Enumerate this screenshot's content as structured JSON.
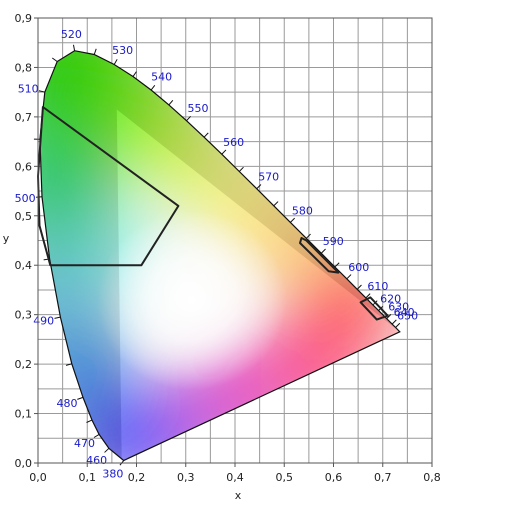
{
  "chart_data": {
    "type": "scatter",
    "title": "",
    "xlabel": "x",
    "ylabel": "y",
    "xlim": [
      0,
      0.8
    ],
    "ylim": [
      0,
      0.9
    ],
    "grid": true,
    "x_ticks": [
      "0,0",
      "0,1",
      "0,2",
      "0,3",
      "0,4",
      "0,5",
      "0,6",
      "0,7",
      "0,8"
    ],
    "y_ticks": [
      "0,0",
      "0,1",
      "0,2",
      "0,3",
      "0,4",
      "0,5",
      "0,6",
      "0,7",
      "0,8",
      "0,9"
    ],
    "spectral_locus": [
      {
        "nm": 380,
        "x": 0.1741,
        "y": 0.005
      },
      {
        "nm": 460,
        "x": 0.144,
        "y": 0.0297
      },
      {
        "nm": 470,
        "x": 0.1241,
        "y": 0.0578
      },
      {
        "nm": 475,
        "x": 0.1096,
        "y": 0.0868
      },
      {
        "nm": 480,
        "x": 0.0913,
        "y": 0.1327
      },
      {
        "nm": 485,
        "x": 0.0687,
        "y": 0.2007
      },
      {
        "nm": 490,
        "x": 0.0454,
        "y": 0.295
      },
      {
        "nm": 495,
        "x": 0.0235,
        "y": 0.4127
      },
      {
        "nm": 500,
        "x": 0.0082,
        "y": 0.5384
      },
      {
        "nm": 505,
        "x": 0.0039,
        "y": 0.6548
      },
      {
        "nm": 510,
        "x": 0.0139,
        "y": 0.7502
      },
      {
        "nm": 515,
        "x": 0.0389,
        "y": 0.812
      },
      {
        "nm": 520,
        "x": 0.0743,
        "y": 0.8338
      },
      {
        "nm": 525,
        "x": 0.1142,
        "y": 0.8262
      },
      {
        "nm": 530,
        "x": 0.1547,
        "y": 0.8059
      },
      {
        "nm": 535,
        "x": 0.1929,
        "y": 0.7816
      },
      {
        "nm": 540,
        "x": 0.2296,
        "y": 0.7543
      },
      {
        "nm": 545,
        "x": 0.2658,
        "y": 0.7243
      },
      {
        "nm": 550,
        "x": 0.3016,
        "y": 0.6923
      },
      {
        "nm": 555,
        "x": 0.3373,
        "y": 0.6589
      },
      {
        "nm": 560,
        "x": 0.3731,
        "y": 0.6245
      },
      {
        "nm": 565,
        "x": 0.4087,
        "y": 0.5896
      },
      {
        "nm": 570,
        "x": 0.4441,
        "y": 0.5547
      },
      {
        "nm": 575,
        "x": 0.4788,
        "y": 0.5202
      },
      {
        "nm": 580,
        "x": 0.5125,
        "y": 0.4866
      },
      {
        "nm": 585,
        "x": 0.5448,
        "y": 0.4544
      },
      {
        "nm": 590,
        "x": 0.5752,
        "y": 0.4242
      },
      {
        "nm": 595,
        "x": 0.6029,
        "y": 0.3965
      },
      {
        "nm": 600,
        "x": 0.627,
        "y": 0.3725
      },
      {
        "nm": 605,
        "x": 0.6482,
        "y": 0.3514
      },
      {
        "nm": 610,
        "x": 0.6658,
        "y": 0.334
      },
      {
        "nm": 615,
        "x": 0.6801,
        "y": 0.3197
      },
      {
        "nm": 620,
        "x": 0.6915,
        "y": 0.3083
      },
      {
        "nm": 630,
        "x": 0.7079,
        "y": 0.292
      },
      {
        "nm": 640,
        "x": 0.719,
        "y": 0.2809
      },
      {
        "nm": 650,
        "x": 0.726,
        "y": 0.274
      },
      {
        "nm": 700,
        "x": 0.7347,
        "y": 0.2653
      }
    ],
    "wavelength_labels": [
      "380",
      "460",
      "470",
      "480",
      "490",
      "500",
      "510",
      "520",
      "530",
      "540",
      "550",
      "560",
      "570",
      "580",
      "590",
      "600",
      "610",
      "620",
      "630",
      "640",
      "650"
    ],
    "gamut_triangle": [
      {
        "x": 0.17,
        "y": 0.005
      },
      {
        "x": 0.16,
        "y": 0.715
      },
      {
        "x": 0.735,
        "y": 0.265
      }
    ],
    "outlined_regions": [
      {
        "points": [
          {
            "x": 0.01,
            "y": 0.72
          },
          {
            "x": 0.0,
            "y": 0.58
          },
          {
            "x": 0.003,
            "y": 0.48
          },
          {
            "x": 0.025,
            "y": 0.4
          },
          {
            "x": 0.21,
            "y": 0.4
          },
          {
            "x": 0.285,
            "y": 0.52
          }
        ]
      },
      {
        "points": [
          {
            "x": 0.535,
            "y": 0.455
          },
          {
            "x": 0.545,
            "y": 0.45
          },
          {
            "x": 0.61,
            "y": 0.385
          },
          {
            "x": 0.59,
            "y": 0.388
          },
          {
            "x": 0.532,
            "y": 0.445
          }
        ]
      },
      {
        "points": [
          {
            "x": 0.655,
            "y": 0.325
          },
          {
            "x": 0.675,
            "y": 0.335
          },
          {
            "x": 0.71,
            "y": 0.298
          },
          {
            "x": 0.688,
            "y": 0.29
          }
        ]
      }
    ],
    "colors": {
      "grid": "#9a9a9a",
      "label": "#1a1acc",
      "outline": "#222222",
      "white_point": "#ffffff"
    }
  }
}
